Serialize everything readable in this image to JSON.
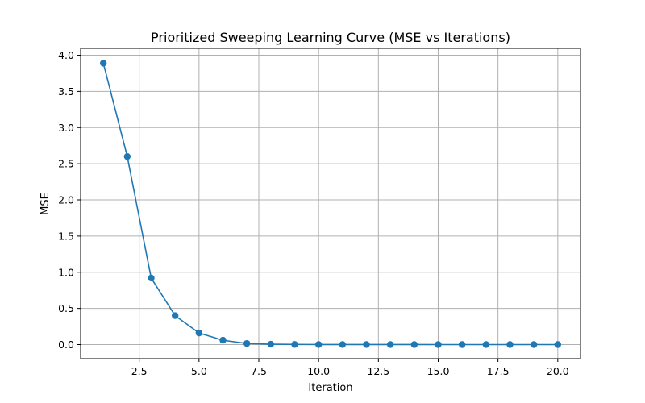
{
  "chart_data": {
    "type": "line",
    "title": "Prioritized Sweeping Learning Curve (MSE vs Iterations)",
    "xlabel": "Iteration",
    "ylabel": "MSE",
    "xlim": [
      0.05,
      20.95
    ],
    "ylim": [
      -0.195,
      4.095
    ],
    "xticks": [
      2.5,
      5.0,
      7.5,
      10.0,
      12.5,
      15.0,
      17.5,
      20.0
    ],
    "xtick_labels": [
      "2.5",
      "5.0",
      "7.5",
      "10.0",
      "12.5",
      "15.0",
      "17.5",
      "20.0"
    ],
    "yticks": [
      0.0,
      0.5,
      1.0,
      1.5,
      2.0,
      2.5,
      3.0,
      3.5,
      4.0
    ],
    "ytick_labels": [
      "0.0",
      "0.5",
      "1.0",
      "1.5",
      "2.0",
      "2.5",
      "3.0",
      "3.5",
      "4.0"
    ],
    "grid": true,
    "line_color": "#1f77b4",
    "marker": "circle",
    "x": [
      1,
      2,
      3,
      4,
      5,
      6,
      7,
      8,
      9,
      10,
      11,
      12,
      13,
      14,
      15,
      16,
      17,
      18,
      19,
      20
    ],
    "values": [
      3.89,
      2.6,
      0.92,
      0.4,
      0.16,
      0.06,
      0.015,
      0.005,
      0.002,
      0.001,
      0.001,
      0.0005,
      0.0003,
      0.0002,
      0.0001,
      0.0001,
      0.0001,
      0.0001,
      0.0001,
      0.0
    ]
  }
}
